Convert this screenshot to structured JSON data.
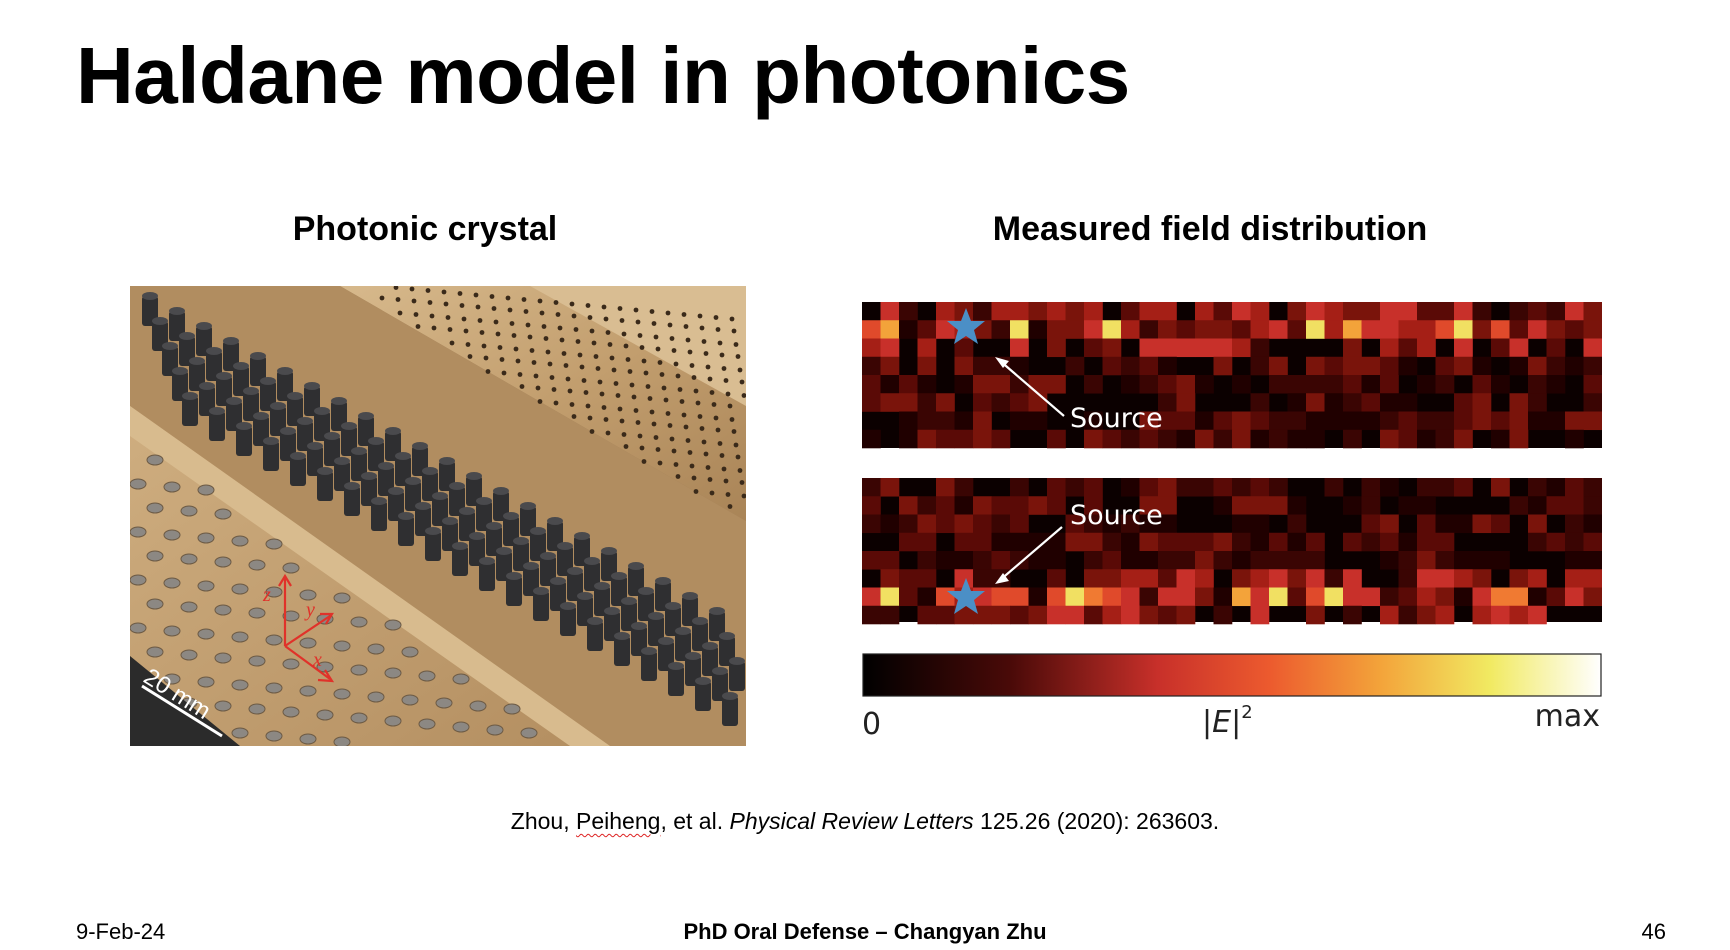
{
  "slide": {
    "title": "Haldane model in photonics",
    "left_heading": "Photonic crystal",
    "right_heading": "Measured field distribution"
  },
  "photo": {
    "scale_label": "20 mm",
    "axis_labels": [
      "z",
      "y",
      "x"
    ],
    "colors": {
      "plate": "#c7a679",
      "rod": "#2f2f31",
      "axis": "#e0322a"
    }
  },
  "field_map": {
    "source_label_top": "Source",
    "source_label_bottom": "Source",
    "colorbar_min": "0",
    "colorbar_mid_symbol": "E",
    "colorbar_mid_exponent": "2",
    "colorbar_max": "max",
    "marker_icon": "star-icon",
    "colors": {
      "marker": "#4b8fc6",
      "background": "#0b0000"
    }
  },
  "citation": {
    "authors_plain": "Zhou, ",
    "authors_flagged": "Peiheng",
    "authors_rest": ", et al. ",
    "journal": "Physical Review Letters",
    "details": " 125.26 (2020): 263603."
  },
  "footer": {
    "date": "9-Feb-24",
    "center": "PhD Oral Defense – Changyan Zhu",
    "page": "46"
  }
}
